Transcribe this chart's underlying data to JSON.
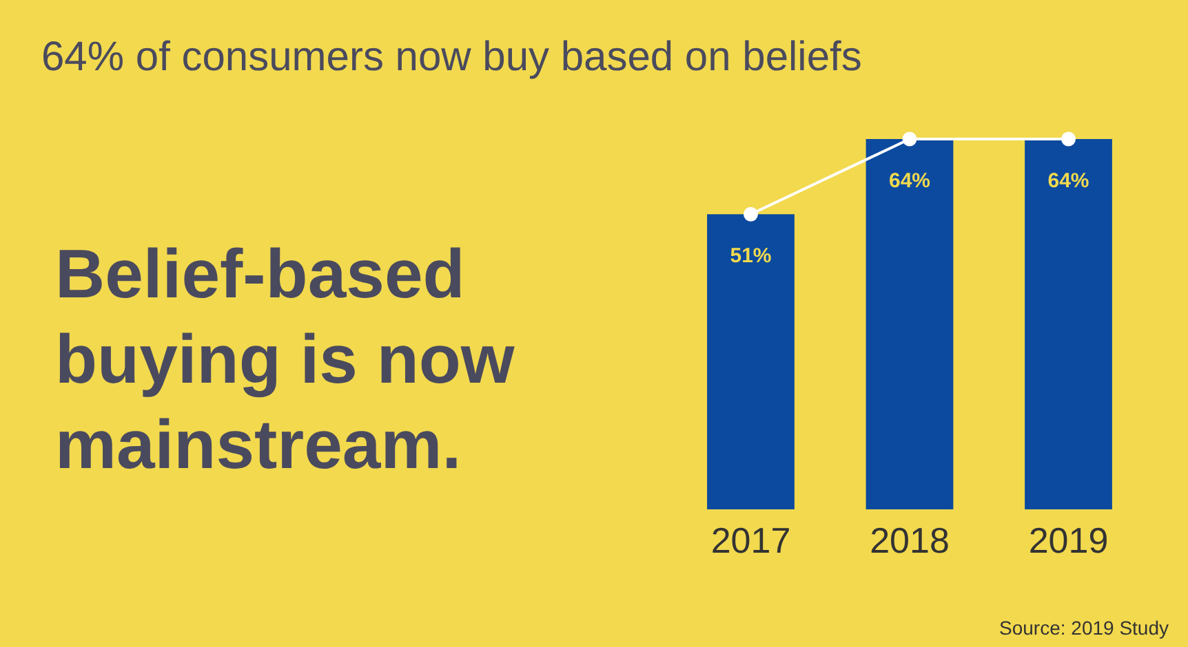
{
  "chart_data": {
    "type": "bar",
    "title": "64% of consumers now buy based on beliefs",
    "categories": [
      "2017",
      "2018",
      "2019"
    ],
    "series": [
      {
        "color": "#0b4a9e",
        "values": [
          51,
          64,
          64
        ],
        "value_labels": [
          "51%",
          "64%",
          "64%"
        ]
      },
      {
        "type": "line",
        "color": "#ffffff",
        "values": [
          51,
          64,
          64
        ]
      }
    ],
    "marker": "circle",
    "grid": false,
    "tick_labels": "x",
    "annotations": [
      "Belief-based\nbuying is now\nmainstream.",
      "Source: 2019 Study"
    ]
  }
}
